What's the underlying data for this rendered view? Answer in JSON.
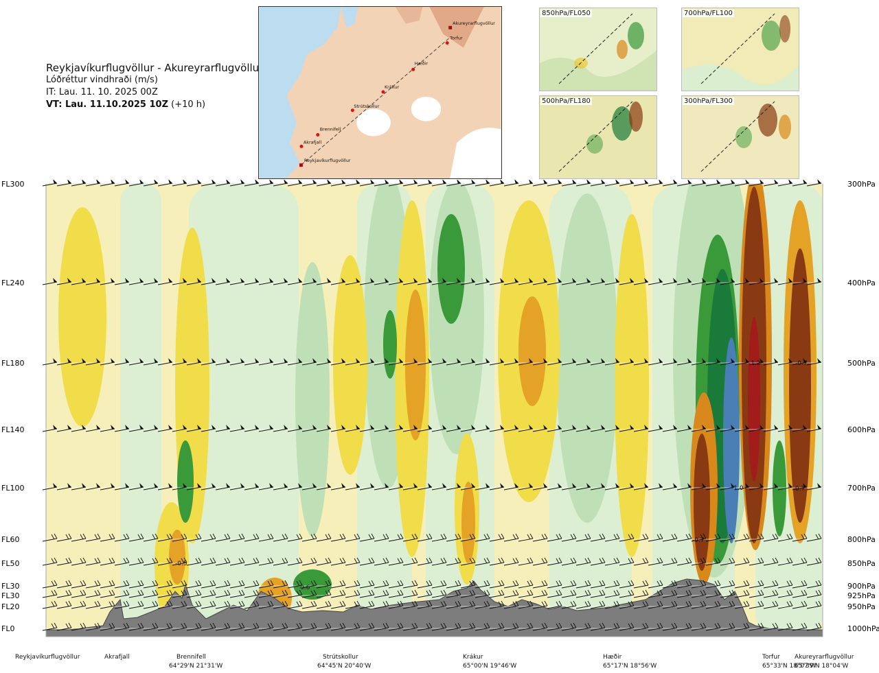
{
  "header": {
    "route": "Reykjavíkurflugvöllur - Akureyrarflugvöllur",
    "variable": "Lóðréttur vindhraði (m/s)",
    "init_time": "IT: Lau. 11. 10. 2025 00Z",
    "valid_time_bold": "VT: Lau. 11.10.2025 10Z",
    "valid_time_lead": "(+10 h)"
  },
  "map": {
    "waypoints": [
      "Akureyrarflugvöllur",
      "Torfur",
      "Hæðir",
      "Krákur",
      "Strútskollur",
      "Brennifell",
      "Akrafjall",
      "Reykjavíkurflugvöllur"
    ]
  },
  "panels": [
    {
      "label": "850hPa/FL050"
    },
    {
      "label": "700hPa/FL100"
    },
    {
      "label": "500hPa/FL180"
    },
    {
      "label": "300hPa/FL300"
    }
  ],
  "chart_data": {
    "type": "heatmap",
    "title": "Lóðréttur vindhraði (m/s)",
    "levels": [
      {
        "fl": "FL300",
        "hpa": "300hPa"
      },
      {
        "fl": "FL240",
        "hpa": "400hPa"
      },
      {
        "fl": "FL180",
        "hpa": "500hPa"
      },
      {
        "fl": "FL140",
        "hpa": "600hPa"
      },
      {
        "fl": "FL100",
        "hpa": "700hPa"
      },
      {
        "fl": "FL60",
        "hpa": "800hPa"
      },
      {
        "fl": "FL50",
        "hpa": "850hPa"
      },
      {
        "fl": "FL30",
        "hpa": "900hPa"
      },
      {
        "fl": "FL30",
        "hpa": "925hPa"
      },
      {
        "fl": "FL20",
        "hpa": "950hPa"
      },
      {
        "fl": "FL0",
        "hpa": "1000hPa"
      }
    ],
    "stations": [
      {
        "name": "Reykjavíkurflugvöllur",
        "coord": ""
      },
      {
        "name": "Akrafjall",
        "coord": ""
      },
      {
        "name": "Brennifell",
        "coord": "64°29'N 21°31'W"
      },
      {
        "name": "Strútskollur",
        "coord": "64°45'N 20°40'W"
      },
      {
        "name": "Krákur",
        "coord": "65°00'N 19°46'W"
      },
      {
        "name": "Hæðir",
        "coord": "65°17'N 18°56'W"
      },
      {
        "name": "Torfur",
        "coord": "65°33'N 18°07'W"
      },
      {
        "name": "Akureyrarflugvöllur",
        "coord": "65°39'N 18°04'W"
      }
    ],
    "annotations": [
      "-0.5",
      "0.6",
      "-0.7",
      "-1.0",
      "-1.2",
      "-0.7",
      "0.7"
    ],
    "colors": {
      "strong_down": "#8a3a12",
      "down_2": "#a31c1c",
      "down_3": "#d9891c",
      "down_4": "#eec21a",
      "weak_down": "#f5e9a8",
      "weak_up": "#dbeed0",
      "up_2": "#9ccc96",
      "up_3": "#3a9a3a",
      "up_4": "#1a7a3a",
      "strong_up": "#4a7fb5",
      "terrain": "#808080"
    }
  }
}
